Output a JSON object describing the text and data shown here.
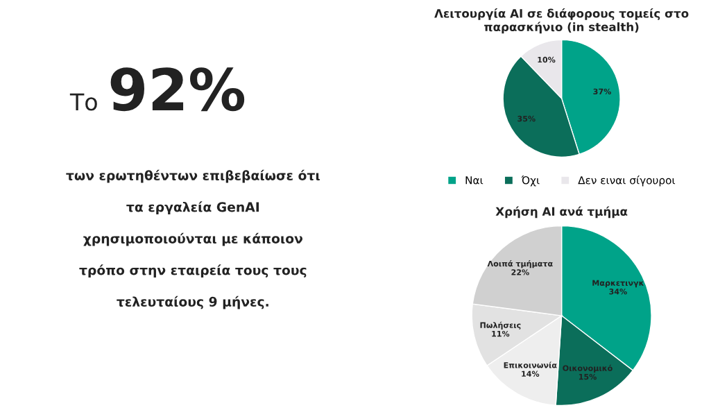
{
  "chart_data": [
    {
      "type": "other",
      "annotations": [
        "Το",
        "92%",
        "των ερωτηθέντων επιβεβαίωσε ότι",
        "τα εργαλεία GenAI",
        "χρησιμοποιούνται με κάποιον",
        "τρόπο στην εταιρεία τους τους",
        "τελευταίους 9 μήνες."
      ]
    },
    {
      "type": "pie",
      "title": "Λειτουργία AI σε διάφορους τομείς στο\nπαρασκήνιο (in stealth)",
      "categories": [
        "Ναι",
        "Όχι",
        "Δεν ειναι σίγουροι"
      ],
      "values": [
        37,
        35,
        10
      ],
      "colors": [
        "#00a389",
        "#0b6e5a",
        "#e9e7eb"
      ],
      "value_labels": [
        "37%",
        "35%",
        "10%"
      ],
      "legend": "bottom"
    },
    {
      "type": "pie",
      "title": "Χρήση AI ανά τμήμα",
      "categories": [
        "Μαρκετινγκ",
        "Οικονομικό",
        "Επικοινωνία",
        "Πωλήσεις",
        "Λοιπά τμήματα"
      ],
      "values": [
        34,
        15,
        14,
        11,
        22
      ],
      "colors": [
        "#00a389",
        "#0b6e5a",
        "#eeeeee",
        "#e2e2e2",
        "#d0d0d0"
      ],
      "value_labels": [
        "34%",
        "15%",
        "14%",
        "11%",
        "22%"
      ]
    }
  ]
}
